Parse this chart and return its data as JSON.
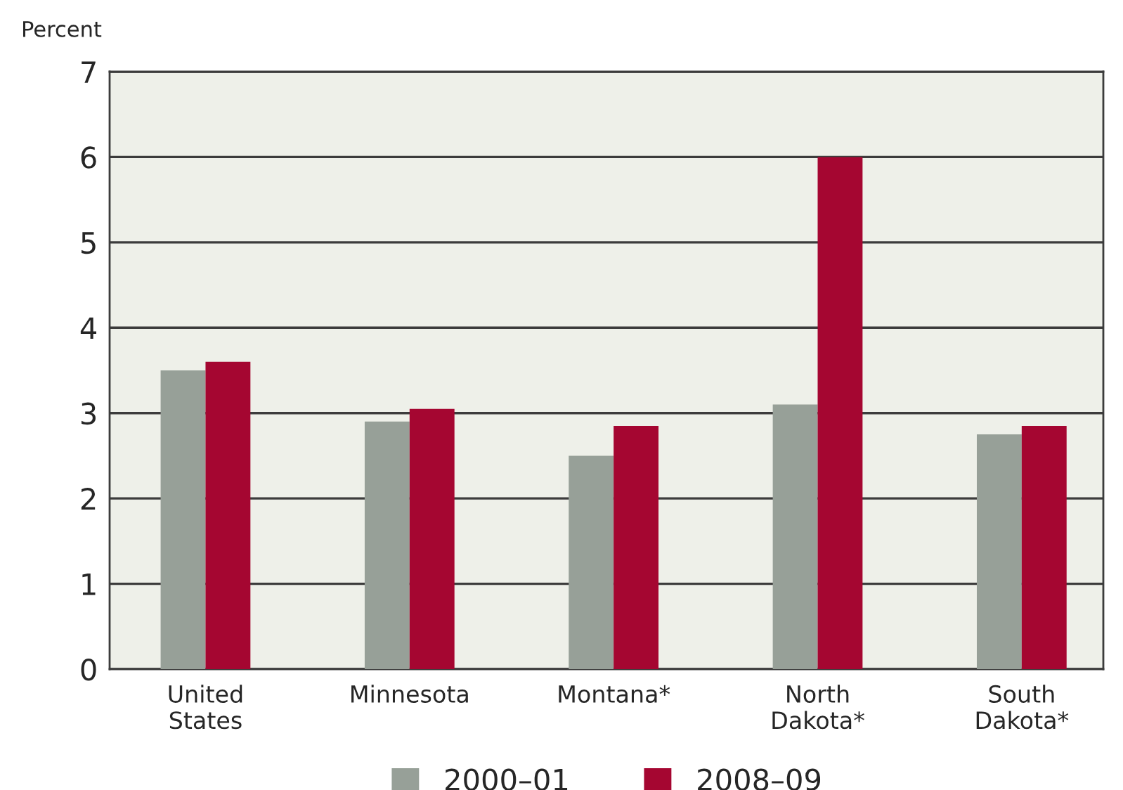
{
  "chart_data": {
    "type": "bar",
    "ylabel": "Percent",
    "categories": [
      "United\nStates",
      "Minnesota",
      "Montana*",
      "North\nDakota*",
      "South\nDakota*"
    ],
    "series": [
      {
        "name": "2000–01",
        "color": "#97a098",
        "values": [
          3.5,
          2.9,
          2.5,
          3.1,
          2.75
        ]
      },
      {
        "name": "2008–09",
        "color": "#a50631",
        "values": [
          3.6,
          3.05,
          2.85,
          6.0,
          2.85
        ]
      }
    ],
    "ylim": [
      0,
      7
    ],
    "yticks": [
      0,
      1,
      2,
      3,
      4,
      5,
      6,
      7
    ],
    "grid": "y",
    "legend": "bottom"
  }
}
